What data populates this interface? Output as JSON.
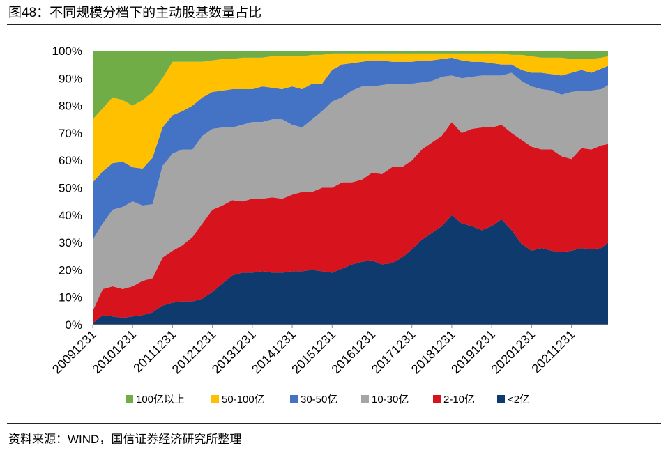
{
  "source": "资料来源：WIND，国信证券经济研究所整理",
  "chart_data": {
    "type": "area",
    "stacking": "percent",
    "title": "图48：不同规模分档下的主动股基数量占比",
    "ylim": [
      0,
      100
    ],
    "grid": false,
    "legend_position": "bottom",
    "y_tick_labels": [
      "0%",
      "10%",
      "20%",
      "30%",
      "40%",
      "50%",
      "60%",
      "70%",
      "80%",
      "90%",
      "100%"
    ],
    "x_tick_labels": [
      "20091231",
      "20101231",
      "20111231",
      "20121231",
      "20131231",
      "20141231",
      "20151231",
      "20161231",
      "20171231",
      "20181231",
      "20191231",
      "20201231",
      "20211231"
    ],
    "x": [
      "20091231",
      "20100331",
      "20100630",
      "20100930",
      "20101231",
      "20110331",
      "20110630",
      "20110930",
      "20111231",
      "20120331",
      "20120630",
      "20120930",
      "20121231",
      "20130331",
      "20130630",
      "20130930",
      "20131231",
      "20140331",
      "20140630",
      "20140930",
      "20141231",
      "20150331",
      "20150630",
      "20150930",
      "20151231",
      "20160331",
      "20160630",
      "20160930",
      "20161231",
      "20170331",
      "20170630",
      "20170930",
      "20171231",
      "20180331",
      "20180630",
      "20180930",
      "20181231",
      "20190331",
      "20190630",
      "20190930",
      "20191231",
      "20200331",
      "20200630",
      "20200930",
      "20201231",
      "20210331",
      "20210630",
      "20210930",
      "20211231",
      "20220331",
      "20220630",
      "20220930",
      "20221130"
    ],
    "series": [
      {
        "name": "100亿以上",
        "color": "#70AD47",
        "values": [
          25,
          21,
          17,
          18,
          20,
          18,
          15,
          10,
          4,
          4,
          4,
          4,
          3.5,
          3,
          3,
          2.5,
          2.5,
          2.5,
          2,
          2,
          2,
          2,
          1.5,
          1.5,
          1,
          1,
          1,
          1,
          1,
          1,
          1,
          1,
          1,
          1,
          1,
          1,
          1,
          1,
          1,
          1,
          1,
          1,
          1.5,
          1.5,
          2,
          2.5,
          2.5,
          2.5,
          3,
          3,
          3,
          2.5,
          2
        ]
      },
      {
        "name": "50-100亿",
        "color": "#FFC000",
        "values": [
          23,
          23,
          24,
          22.5,
          22.5,
          25,
          24,
          18,
          19.5,
          18,
          16,
          13,
          11.5,
          11.5,
          11,
          11.5,
          11.5,
          10.5,
          11.5,
          12,
          11,
          12,
          10.5,
          10.5,
          6,
          4,
          3.5,
          3,
          2.5,
          2.5,
          3,
          3,
          3,
          2.5,
          2.5,
          2,
          1.5,
          2.5,
          3,
          3,
          3.5,
          4,
          3.5,
          5.5,
          6,
          5.5,
          6,
          6.5,
          5,
          4,
          5,
          4,
          3.5
        ]
      },
      {
        "name": "30-50亿",
        "color": "#4472C4",
        "values": [
          21,
          19,
          17,
          16.5,
          12.5,
          13.5,
          17,
          14,
          14,
          14,
          16,
          14,
          13.5,
          13.5,
          14,
          13,
          12,
          13,
          11.5,
          11,
          14,
          14,
          13,
          10,
          11.5,
          12,
          10,
          9,
          9.5,
          9,
          8,
          8,
          8,
          8,
          7.5,
          6.5,
          6.5,
          6.5,
          5.5,
          5,
          4.5,
          4,
          3,
          4,
          5,
          6,
          6,
          7,
          7,
          7.5,
          6.5,
          7.5,
          7
        ]
      },
      {
        "name": "10-30亿",
        "color": "#A5A5A5",
        "values": [
          26,
          24,
          28,
          30,
          31,
          27.5,
          27,
          33.5,
          35.5,
          35,
          32,
          32,
          29.5,
          28.5,
          26.5,
          28,
          28,
          28,
          28.5,
          29,
          25.5,
          23.5,
          26.5,
          28,
          31.5,
          31,
          33.5,
          34,
          31.5,
          32.5,
          30.5,
          30.5,
          28,
          24.5,
          22.5,
          21.5,
          17,
          20,
          19,
          19,
          19,
          18,
          22,
          21.5,
          22,
          22,
          21.5,
          22.5,
          24.5,
          21,
          21.5,
          20.5,
          21.5
        ]
      },
      {
        "name": "2-10亿",
        "color": "#D7141E",
        "values": [
          4.5,
          9.5,
          11,
          10.5,
          11,
          12.5,
          12.5,
          17.5,
          19,
          20.5,
          23.5,
          27.5,
          30,
          28.5,
          27.5,
          26,
          27,
          26.5,
          27.5,
          27,
          28,
          29,
          28.5,
          30.5,
          31,
          31.5,
          30,
          30,
          32,
          33,
          35,
          33,
          32.5,
          33,
          33,
          33,
          34,
          33,
          35.5,
          37.5,
          36,
          34.5,
          35.5,
          38,
          38,
          36,
          37,
          35,
          33.5,
          36.5,
          36.5,
          37.5,
          36
        ]
      },
      {
        "name": "<2亿",
        "color": "#0E3A6E",
        "values": [
          0.5,
          3.5,
          3,
          2.5,
          3,
          3.5,
          4.5,
          7,
          8,
          8.5,
          8.5,
          9.5,
          12,
          15,
          18,
          19,
          19,
          19.5,
          19,
          19,
          19.5,
          19.5,
          20,
          19.5,
          19,
          20.5,
          22,
          23,
          23.5,
          22,
          22.5,
          24.5,
          27.5,
          31,
          33.5,
          36,
          40,
          37,
          36,
          34.5,
          36,
          38.5,
          34.5,
          29.5,
          27,
          28,
          27,
          26.5,
          27,
          28,
          27.5,
          28,
          30
        ]
      }
    ]
  }
}
